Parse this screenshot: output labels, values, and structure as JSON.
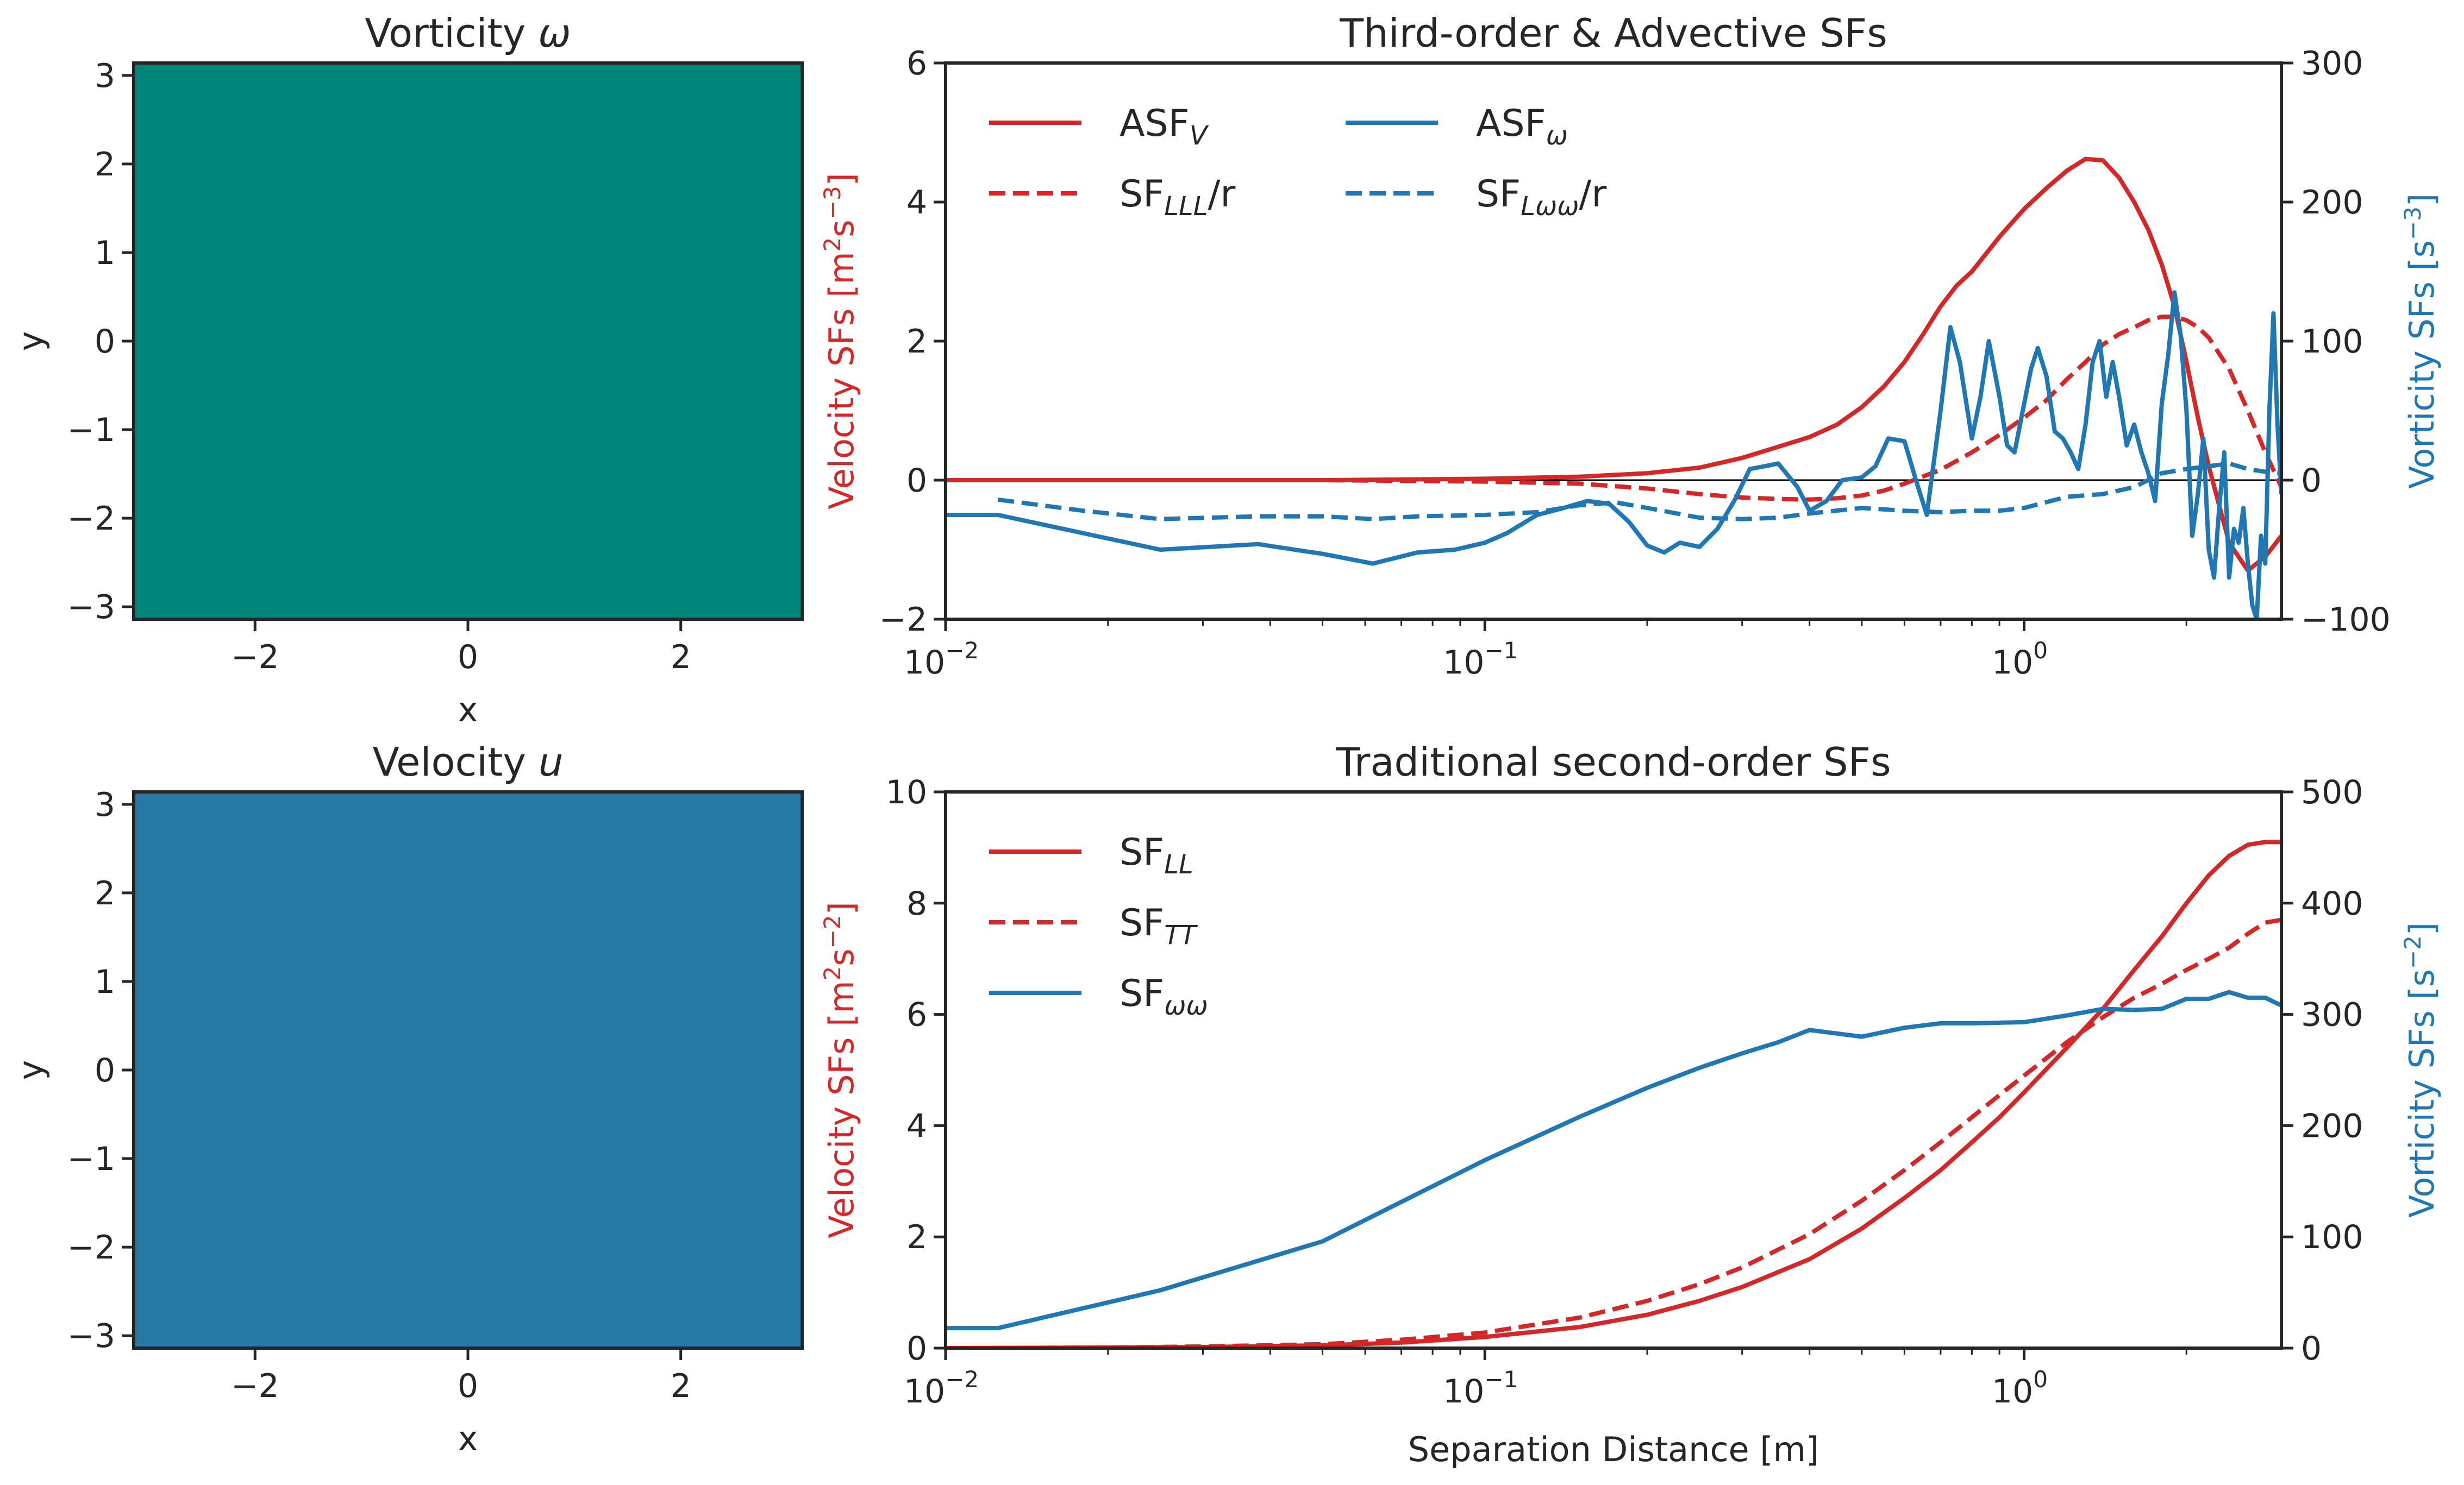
{
  "colors": {
    "red": "#d62728",
    "blue": "#1f77b4",
    "axis": "#262626",
    "teal": "#01665e",
    "brown": "#8c510a",
    "rdbu_red": "#b2182b",
    "rdbu_blue": "#2166ac"
  },
  "chart_data": [
    {
      "type": "heatmap",
      "title": "Vorticity ω",
      "title_main": "Vorticity ",
      "title_sym": "ω",
      "xlabel": "x",
      "ylabel": "y",
      "xlim": [
        -3.14,
        3.14
      ],
      "ylim": [
        -3.14,
        3.14
      ],
      "xticks": [
        -2,
        0,
        2
      ],
      "yticks": [
        3,
        2,
        1,
        0,
        -1,
        -2,
        -3
      ],
      "xtick_labels": [
        "−2",
        "0",
        "2"
      ],
      "ytick_labels": [
        "3",
        "2",
        "1",
        "0",
        "−1",
        "−2",
        "−3"
      ],
      "colormap": "BrBG"
    },
    {
      "type": "line",
      "title": "Third-order & Advective SFs",
      "xscale": "log",
      "xlim": [
        0.01,
        3.0
      ],
      "xticks": [
        0.01,
        0.1,
        1
      ],
      "xtick_base": [
        "10",
        "10",
        "10"
      ],
      "xtick_exp": [
        "−2",
        "−1",
        "0"
      ],
      "ylabel_left": "Velocity SFs [m²s⁻³]",
      "ylabel_left_main": "Velocity SFs [m",
      "ylabel_left_mid": "s",
      "ylabel_left_sup1": "2",
      "ylabel_left_sup2": "−3",
      "ylabel_left_end": "]",
      "ylim_left": [
        -2,
        6
      ],
      "yticks_left": [
        -2,
        0,
        2,
        4,
        6
      ],
      "ytick_labels_left": [
        "−2",
        "0",
        "2",
        "4",
        "6"
      ],
      "ylabel_right": "Vorticity SFs [s⁻³]",
      "ylabel_right_main": "Vorticity SFs [s",
      "ylabel_right_sup": "−3",
      "ylabel_right_end": "]",
      "ylim_right": [
        -100,
        300
      ],
      "yticks_right": [
        -100,
        0,
        100,
        200,
        300
      ],
      "ytick_labels_right": [
        "−100",
        "0",
        "100",
        "200",
        "300"
      ],
      "legend_position": "top-left",
      "series": [
        {
          "name": "ASF_V",
          "label_main": "ASF",
          "label_sub": "V",
          "label_end": "",
          "axis": "left",
          "style": "solid",
          "color": "#d62728",
          "x": [
            0.01,
            0.05,
            0.1,
            0.15,
            0.2,
            0.25,
            0.3,
            0.35,
            0.4,
            0.45,
            0.5,
            0.55,
            0.6,
            0.65,
            0.7,
            0.75,
            0.8,
            0.9,
            1.0,
            1.1,
            1.2,
            1.3,
            1.4,
            1.5,
            1.6,
            1.7,
            1.8,
            1.9,
            2.0,
            2.1,
            2.2,
            2.4,
            2.6,
            2.8,
            3.0
          ],
          "y": [
            0.0,
            0.0,
            0.02,
            0.05,
            0.1,
            0.18,
            0.32,
            0.48,
            0.62,
            0.8,
            1.05,
            1.35,
            1.7,
            2.1,
            2.5,
            2.8,
            3.0,
            3.5,
            3.9,
            4.2,
            4.45,
            4.62,
            4.6,
            4.35,
            4.0,
            3.6,
            3.1,
            2.5,
            1.7,
            0.9,
            0.2,
            -0.9,
            -1.3,
            -1.1,
            -0.8
          ]
        },
        {
          "name": "SF_LLL/r",
          "label_main": "SF",
          "label_sub": "LLL",
          "label_end": "/r",
          "axis": "left",
          "style": "dashed",
          "color": "#d62728",
          "x": [
            0.01,
            0.05,
            0.1,
            0.15,
            0.2,
            0.25,
            0.3,
            0.35,
            0.4,
            0.45,
            0.5,
            0.55,
            0.6,
            0.7,
            0.8,
            0.9,
            1.0,
            1.1,
            1.2,
            1.3,
            1.4,
            1.5,
            1.6,
            1.7,
            1.8,
            1.9,
            2.0,
            2.1,
            2.2,
            2.4,
            2.6,
            2.8,
            3.0
          ],
          "y": [
            0.0,
            0.0,
            -0.02,
            -0.05,
            -0.12,
            -0.2,
            -0.25,
            -0.27,
            -0.28,
            -0.26,
            -0.22,
            -0.15,
            -0.05,
            0.15,
            0.4,
            0.65,
            0.9,
            1.15,
            1.45,
            1.7,
            1.95,
            2.1,
            2.2,
            2.3,
            2.35,
            2.35,
            2.3,
            2.2,
            2.05,
            1.6,
            1.0,
            0.4,
            -0.1
          ]
        },
        {
          "name": "ASF_ω",
          "label_main": "ASF",
          "label_sub": "ω",
          "label_end": "",
          "axis": "right",
          "style": "solid",
          "color": "#1f77b4",
          "x": [
            0.01,
            0.0125,
            0.025,
            0.038,
            0.05,
            0.062,
            0.075,
            0.088,
            0.1,
            0.11,
            0.125,
            0.14,
            0.155,
            0.17,
            0.185,
            0.2,
            0.215,
            0.23,
            0.25,
            0.27,
            0.29,
            0.31,
            0.33,
            0.35,
            0.38,
            0.4,
            0.43,
            0.46,
            0.5,
            0.53,
            0.56,
            0.6,
            0.63,
            0.66,
            0.7,
            0.73,
            0.76,
            0.8,
            0.83,
            0.86,
            0.9,
            0.93,
            0.96,
            1.0,
            1.03,
            1.06,
            1.1,
            1.14,
            1.18,
            1.22,
            1.26,
            1.3,
            1.34,
            1.38,
            1.42,
            1.46,
            1.5,
            1.55,
            1.6,
            1.65,
            1.7,
            1.75,
            1.8,
            1.85,
            1.9,
            1.95,
            2.0,
            2.05,
            2.1,
            2.15,
            2.2,
            2.25,
            2.3,
            2.35,
            2.4,
            2.45,
            2.5,
            2.55,
            2.6,
            2.65,
            2.7,
            2.75,
            2.8,
            2.85,
            2.9,
            2.95,
            3.0
          ],
          "y": [
            -25,
            -25,
            -50,
            -46,
            -53,
            -60,
            -52,
            -50,
            -45,
            -38,
            -25,
            -20,
            -15,
            -17,
            -30,
            -47,
            -52,
            -45,
            -48,
            -35,
            -15,
            8,
            10,
            12,
            -5,
            -22,
            -15,
            0,
            2,
            10,
            30,
            28,
            0,
            -25,
            50,
            110,
            85,
            30,
            60,
            100,
            60,
            25,
            20,
            55,
            80,
            95,
            75,
            35,
            30,
            20,
            8,
            40,
            85,
            100,
            60,
            85,
            60,
            25,
            40,
            20,
            5,
            -15,
            55,
            90,
            135,
            105,
            50,
            -40,
            -10,
            30,
            -50,
            -70,
            -20,
            20,
            -70,
            -35,
            -45,
            -20,
            -60,
            -90,
            -100,
            -40,
            -60,
            50,
            120,
            40,
            -10
          ]
        },
        {
          "name": "SF_Lωω/r",
          "label_main": "SF",
          "label_sub": "Lωω",
          "label_end": "/r",
          "axis": "right",
          "style": "dashed",
          "color": "#1f77b4",
          "x": [
            0.0125,
            0.018,
            0.025,
            0.038,
            0.05,
            0.062,
            0.075,
            0.1,
            0.125,
            0.15,
            0.175,
            0.2,
            0.25,
            0.3,
            0.35,
            0.4,
            0.5,
            0.6,
            0.7,
            0.8,
            0.9,
            1.0,
            1.2,
            1.4,
            1.6,
            1.8,
            2.0,
            2.2,
            2.4,
            2.6,
            2.8,
            3.0
          ],
          "y": [
            -14,
            -22,
            -28,
            -26,
            -26,
            -28,
            -26,
            -25,
            -23,
            -18,
            -16,
            -20,
            -27,
            -28,
            -27,
            -24,
            -20,
            -22,
            -23,
            -22,
            -22,
            -20,
            -12,
            -10,
            -5,
            5,
            8,
            10,
            12,
            8,
            6,
            5
          ]
        }
      ]
    },
    {
      "type": "heatmap",
      "title": "Velocity u",
      "title_main": "Velocity ",
      "title_sym": "u",
      "xlabel": "x",
      "ylabel": "y",
      "xlim": [
        -3.14,
        3.14
      ],
      "ylim": [
        -3.14,
        3.14
      ],
      "xticks": [
        -2,
        0,
        2
      ],
      "yticks": [
        3,
        2,
        1,
        0,
        -1,
        -2,
        -3
      ],
      "xtick_labels": [
        "−2",
        "0",
        "2"
      ],
      "ytick_labels": [
        "3",
        "2",
        "1",
        "0",
        "−1",
        "−2",
        "−3"
      ],
      "colormap": "RdBu_r"
    },
    {
      "type": "line",
      "title": "Traditional second-order SFs",
      "xlabel": "Separation Distance [m]",
      "xscale": "log",
      "xlim": [
        0.01,
        3.0
      ],
      "xticks": [
        0.01,
        0.1,
        1
      ],
      "xtick_base": [
        "10",
        "10",
        "10"
      ],
      "xtick_exp": [
        "−2",
        "−1",
        "0"
      ],
      "ylabel_left": "Velocity SFs [m²s⁻²]",
      "ylabel_left_main": "Velocity SFs [m",
      "ylabel_left_mid": "s",
      "ylabel_left_sup1": "2",
      "ylabel_left_sup2": "−2",
      "ylabel_left_end": "]",
      "ylim_left": [
        0,
        10
      ],
      "yticks_left": [
        0,
        2,
        4,
        6,
        8,
        10
      ],
      "ytick_labels_left": [
        "0",
        "2",
        "4",
        "6",
        "8",
        "10"
      ],
      "ylabel_right": "Vorticity SFs [s⁻²]",
      "ylabel_right_main": "Vorticity SFs [s",
      "ylabel_right_sup": "−2",
      "ylabel_right_end": "]",
      "ylim_right": [
        0,
        500
      ],
      "yticks_right": [
        0,
        100,
        200,
        300,
        400,
        500
      ],
      "ytick_labels_right": [
        "0",
        "100",
        "200",
        "300",
        "400",
        "500"
      ],
      "legend_position": "top-left",
      "series": [
        {
          "name": "SF_LL",
          "label_main": "SF",
          "label_sub": "LL",
          "label_end": "",
          "axis": "left",
          "style": "solid",
          "color": "#d62728",
          "x": [
            0.01,
            0.02,
            0.03,
            0.05,
            0.07,
            0.1,
            0.15,
            0.2,
            0.25,
            0.3,
            0.4,
            0.5,
            0.6,
            0.7,
            0.8,
            0.9,
            1.0,
            1.2,
            1.4,
            1.6,
            1.8,
            2.0,
            2.2,
            2.4,
            2.6,
            2.8,
            3.0
          ],
          "y": [
            0.0,
            0.01,
            0.02,
            0.05,
            0.1,
            0.2,
            0.38,
            0.6,
            0.85,
            1.1,
            1.6,
            2.15,
            2.7,
            3.2,
            3.7,
            4.15,
            4.6,
            5.4,
            6.1,
            6.8,
            7.4,
            8.0,
            8.5,
            8.85,
            9.05,
            9.1,
            9.1
          ]
        },
        {
          "name": "SF_TT",
          "label_main": "SF",
          "label_sub": "TT",
          "label_end": "",
          "axis": "left",
          "style": "dashed",
          "color": "#d62728",
          "x": [
            0.01,
            0.02,
            0.03,
            0.05,
            0.07,
            0.1,
            0.15,
            0.2,
            0.25,
            0.3,
            0.4,
            0.5,
            0.6,
            0.7,
            0.8,
            0.9,
            1.0,
            1.2,
            1.4,
            1.6,
            1.8,
            2.0,
            2.2,
            2.4,
            2.6,
            2.8,
            3.0
          ],
          "y": [
            0.0,
            0.01,
            0.03,
            0.07,
            0.15,
            0.28,
            0.55,
            0.85,
            1.15,
            1.45,
            2.05,
            2.65,
            3.2,
            3.7,
            4.15,
            4.55,
            4.9,
            5.5,
            5.95,
            6.3,
            6.55,
            6.8,
            7.0,
            7.2,
            7.45,
            7.65,
            7.7
          ]
        },
        {
          "name": "SF_ωω",
          "label_main": "SF",
          "label_sub": "ωω",
          "label_end": "",
          "axis": "right",
          "style": "solid",
          "color": "#1f77b4",
          "x": [
            0.01,
            0.0125,
            0.025,
            0.05,
            0.1,
            0.15,
            0.2,
            0.25,
            0.3,
            0.35,
            0.4,
            0.5,
            0.6,
            0.7,
            0.8,
            1.0,
            1.2,
            1.4,
            1.6,
            1.8,
            2.0,
            2.2,
            2.4,
            2.6,
            2.8,
            3.0
          ],
          "y": [
            18,
            18,
            52,
            96,
            169,
            208,
            234,
            252,
            265,
            275,
            286,
            280,
            288,
            292,
            292,
            293,
            299,
            305,
            304,
            305,
            314,
            314,
            320,
            315,
            315,
            308
          ]
        }
      ]
    }
  ]
}
